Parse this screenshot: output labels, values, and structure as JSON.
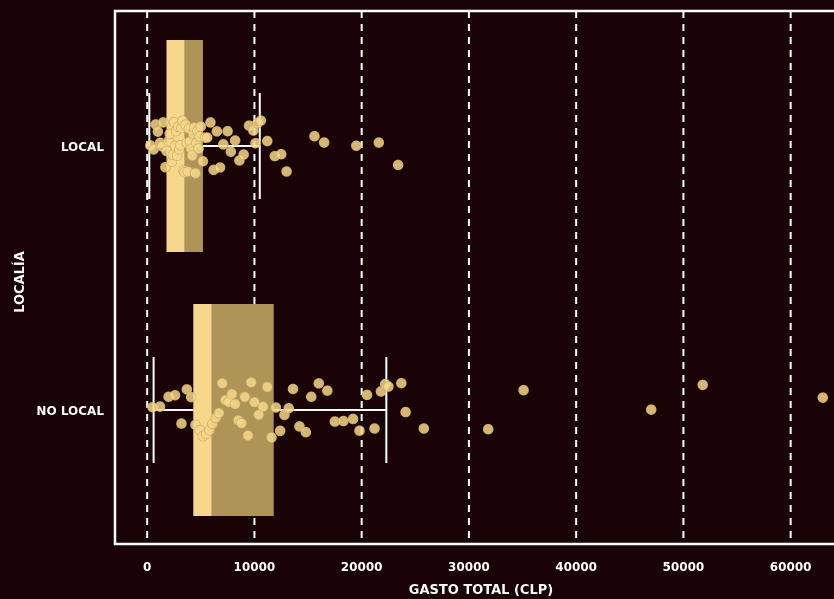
{
  "chart_data": {
    "type": "box",
    "orientation": "horizontal",
    "xlabel": "GASTO TOTAL (CLP)",
    "ylabel": "LOCALÍA",
    "xlim": [
      -3000,
      66000
    ],
    "x_ticks": [
      0,
      10000,
      20000,
      30000,
      40000,
      50000,
      60000
    ],
    "x_tick_labels": [
      "0",
      "10000",
      "20000",
      "30000",
      "40000",
      "50000",
      "60000"
    ],
    "grid": "vertical dashed",
    "categories": [
      "LOCAL",
      "NO LOCAL"
    ],
    "colors": {
      "background": "#1a0306",
      "box_light": "#f6d78b",
      "box_dark": "#ae9457",
      "point": "#f6d78b",
      "frame": "#ffffff"
    },
    "series": [
      {
        "category": "LOCAL",
        "whisker_low": 200,
        "q1": 1800,
        "median": 3500,
        "q3": 5200,
        "whisker_high": 10500,
        "outliers": [
          10800,
          11800,
          12500,
          13200,
          15800,
          16200,
          16500,
          19200,
          21800,
          23500
        ],
        "points": [
          300,
          600,
          800,
          1000,
          1200,
          1400,
          1500,
          1700,
          1800,
          2000,
          2100,
          2300,
          2400,
          2500,
          2600,
          2700,
          2800,
          2900,
          3000,
          3100,
          3200,
          3300,
          3400,
          3500,
          3600,
          3700,
          3800,
          3900,
          4000,
          4100,
          4200,
          4300,
          4400,
          4500,
          4600,
          4700,
          4800,
          4900,
          5000,
          5200,
          5400,
          5600,
          5900,
          6200,
          6500,
          6800,
          7100,
          7500,
          7800,
          8200,
          8600,
          9000,
          9500,
          9900,
          10100,
          10300,
          10600,
          11200,
          11900,
          12500,
          13000,
          15600,
          16500,
          19500,
          21600,
          23400
        ]
      },
      {
        "category": "NO LOCAL",
        "whisker_low": 600,
        "q1": 4300,
        "median": 6000,
        "q3": 11800,
        "whisker_high": 22300,
        "outliers": [
          22500,
          24000,
          25800,
          31800,
          35100,
          47000,
          51800,
          63000
        ],
        "points": [
          500,
          1200,
          2000,
          2600,
          3200,
          3700,
          4100,
          4500,
          4900,
          5200,
          5500,
          5800,
          6100,
          6400,
          6700,
          7000,
          7300,
          7600,
          7900,
          8200,
          8500,
          8800,
          9100,
          9400,
          9700,
          10000,
          10400,
          10800,
          11200,
          11600,
          12000,
          12400,
          12800,
          13200,
          13600,
          14200,
          14800,
          15300,
          16000,
          16800,
          17500,
          18300,
          19200,
          19800,
          20500,
          21200,
          21800,
          22200,
          22500,
          23700,
          24100,
          25800,
          31800,
          35100,
          47000,
          51800,
          63000
        ]
      }
    ]
  }
}
